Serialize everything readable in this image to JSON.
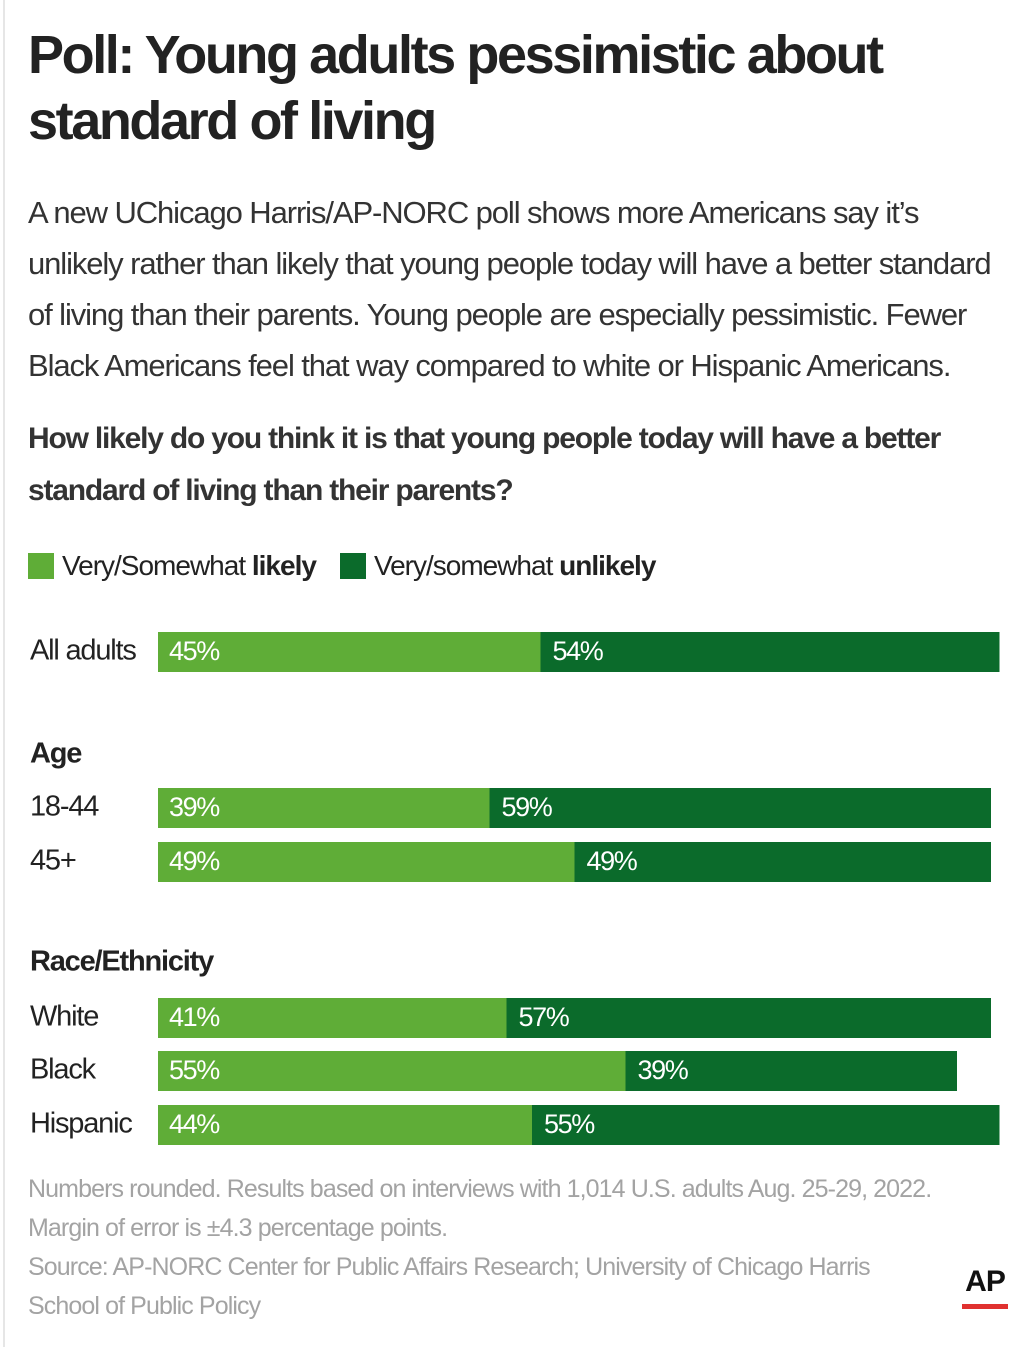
{
  "headline": "Poll: Young adults pessimistic about standard of living",
  "dek": "A new UChicago Harris/AP-NORC poll shows more Americans say it’s unlikely rather than likely that young people today will have a better standard of living than their parents. Young people are especially pessimistic. Fewer Black Americans feel that way compared to white or Hispanic Americans.",
  "question": "How likely do you think it is that young people today will have a better standard of living than their parents?",
  "legend": {
    "likely": {
      "prefix": "Very/Somewhat ",
      "bold": "likely"
    },
    "unlikely": {
      "prefix": "Very/somewhat ",
      "bold": "unlikely"
    }
  },
  "colors": {
    "likely": "#5fad37",
    "unlikely": "#0b6b2b",
    "footnote": "#a3a3a3",
    "ap_red": "#e0312f"
  },
  "chart_data": {
    "type": "bar",
    "orientation": "horizontal",
    "stacked": true,
    "title": "How likely do you think it is that young people today will have a better standard of living than their parents?",
    "xlim": [
      0,
      100
    ],
    "grid": false,
    "legend_position": "top-left",
    "series": [
      {
        "name": "Very/Somewhat likely",
        "values": [
          45,
          39,
          49,
          41,
          55,
          44
        ]
      },
      {
        "name": "Very/somewhat unlikely",
        "values": [
          54,
          59,
          49,
          57,
          39,
          55
        ]
      }
    ],
    "categories": [
      "All adults",
      "18-44",
      "45+",
      "White",
      "Black",
      "Hispanic"
    ],
    "groups": [
      {
        "heading": "",
        "rows": [
          0
        ]
      },
      {
        "heading": "Age",
        "rows": [
          1,
          2
        ]
      },
      {
        "heading": "Race/Ethnicity",
        "rows": [
          3,
          4,
          5
        ]
      }
    ]
  },
  "footnote": {
    "line1": "Numbers rounded. Results based on interviews with 1,014 U.S. adults Aug. 25-29, 2022.",
    "line2": "Margin of error is ±4.3 percentage points.",
    "line3": "Source: AP-NORC Center for Public Affairs Research; University of Chicago Harris School of Public Policy"
  },
  "logo": {
    "text": "AP"
  }
}
